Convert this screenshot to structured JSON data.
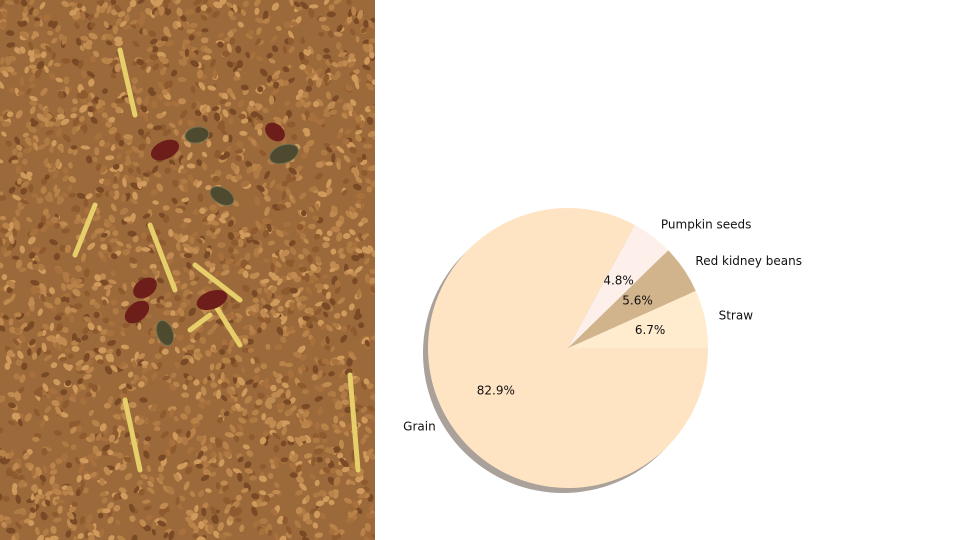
{
  "colors": {
    "background": "#ffffff",
    "grain_base": "#9c6a3a",
    "shadow": "#8c8278"
  },
  "chart_data": {
    "type": "pie",
    "title": "",
    "start_angle": 0,
    "direction": "counterclockwise",
    "shadow": true,
    "slices": [
      {
        "label": "Straw",
        "value": 6.7,
        "pct_label": "6.7%",
        "color": "#ffebcd"
      },
      {
        "label": "Red kidney beans",
        "value": 5.6,
        "pct_label": "5.6%",
        "color": "#d2b48c"
      },
      {
        "label": "Pumpkin seeds",
        "value": 4.8,
        "pct_label": "4.8%",
        "color": "#fdf0ea"
      },
      {
        "label": "Grain",
        "value": 82.9,
        "pct_label": "82.9%",
        "color": "#ffe4c4"
      }
    ]
  }
}
